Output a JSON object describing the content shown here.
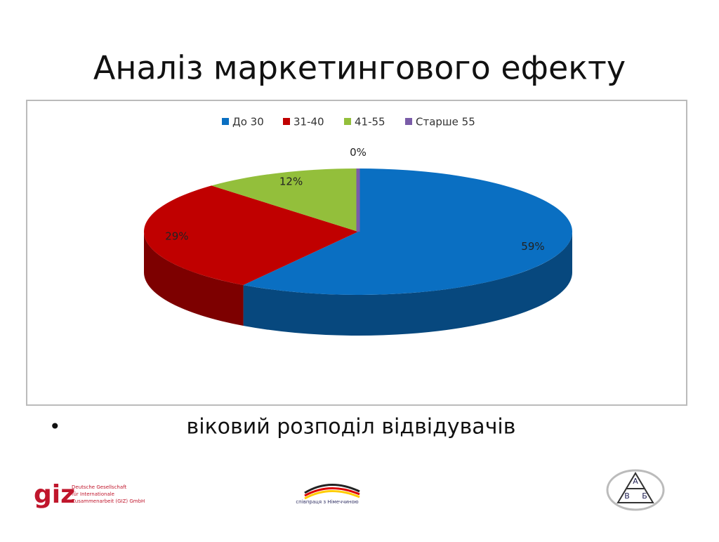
{
  "chart_data": {
    "type": "pie",
    "title": "Аналіз маркетингового ефекту",
    "categories": [
      "До 30",
      "31-40",
      "41-55",
      "Старше 55"
    ],
    "values": [
      59,
      29,
      12,
      0
    ],
    "value_labels": [
      "59%",
      "29%",
      "12%",
      "0%"
    ],
    "colors": [
      "#0a6fc2",
      "#c00000",
      "#93bf3b",
      "#7a5ca8"
    ],
    "legend": "top"
  },
  "bullet": "віковий розподіл відвідувачів",
  "footer": {
    "giz_logo": "giz",
    "giz_text": [
      "Deutsche Gesellschaft",
      "für Internationale",
      "Zusammenarbeit (GIZ) GmbH"
    ],
    "partner_logo": "співпраця з Німеччиною",
    "abv_letters": [
      "А",
      "В",
      "Б"
    ]
  }
}
